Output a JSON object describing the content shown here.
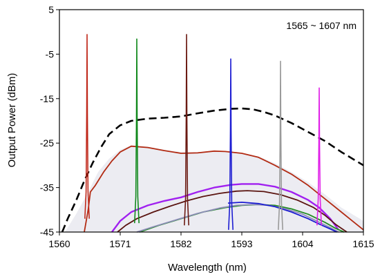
{
  "chart_data": {
    "type": "line",
    "xlabel": "Wavelength (nm)",
    "ylabel": "Output Power (dBm)",
    "xlim": [
      1560,
      1615
    ],
    "ylim": [
      -45,
      5
    ],
    "xticks": [
      1560,
      1571,
      1582,
      1593,
      1604,
      1615
    ],
    "yticks": [
      5,
      -5,
      -15,
      -25,
      -35,
      -45
    ],
    "x_tick_labels": [
      "1560",
      "1571",
      "1582",
      "1593",
      "1604",
      "1615"
    ],
    "y_tick_labels": [
      "5",
      "-5",
      "-15",
      "-25",
      "-35",
      "-45"
    ],
    "annotation": "1565 ~ 1607 nm",
    "grid": false,
    "legend": "none",
    "series": [
      {
        "style": "dashed",
        "color": "#000000",
        "x": [
          1560.5,
          1561.5,
          1563,
          1564.5,
          1566,
          1567.5,
          1569,
          1571,
          1573,
          1576,
          1579,
          1582,
          1585,
          1588,
          1591,
          1593,
          1595,
          1597,
          1599,
          1602,
          1605,
          1608,
          1611,
          1613,
          1615
        ],
        "y": [
          -45,
          -42,
          -38,
          -33.5,
          -29.5,
          -26,
          -23,
          -21,
          -20,
          -19.5,
          -19.3,
          -19,
          -18.3,
          -17.7,
          -17.3,
          -17.2,
          -17.4,
          -18,
          -18.8,
          -20.5,
          -22.5,
          -24.5,
          -27,
          -28.5,
          -30
        ]
      },
      {
        "style": "solid",
        "color": "#e8e8ec",
        "role": "ase-fill",
        "x": [
          1561,
          1563,
          1565,
          1567,
          1569,
          1571,
          1573,
          1576,
          1579,
          1582,
          1585,
          1588,
          1591,
          1593,
          1596,
          1599,
          1602,
          1605,
          1608,
          1611,
          1613,
          1615
        ],
        "y": [
          -45,
          -41,
          -36.5,
          -31.5,
          -28.5,
          -26.5,
          -25.5,
          -25.8,
          -26.5,
          -27,
          -27,
          -26.8,
          -26.9,
          -27.2,
          -28,
          -29.5,
          -31.5,
          -33.8,
          -36.5,
          -39.5,
          -41,
          -42.5
        ]
      },
      {
        "style": "solid",
        "color": "#b22a12",
        "role": "red-ase",
        "x": [
          1564.5,
          1565.2,
          1565.6,
          1566.5,
          1568,
          1569.5,
          1571,
          1573,
          1576,
          1579,
          1582,
          1585,
          1588,
          1590,
          1593,
          1596,
          1599,
          1602,
          1605,
          1608,
          1611,
          1613,
          1615
        ],
        "y": [
          -45,
          -40,
          -36,
          -34.5,
          -31.5,
          -29,
          -27,
          -25.7,
          -26,
          -26.7,
          -27.3,
          -27.2,
          -26.8,
          -26.9,
          -27.3,
          -28.2,
          -30,
          -32,
          -34.5,
          -37.5,
          -40.5,
          -42.5,
          -44.5
        ]
      },
      {
        "style": "solid",
        "color": "#a020f0",
        "role": "magenta",
        "x": [
          1569.5,
          1571,
          1573,
          1576,
          1579,
          1582,
          1585,
          1588,
          1591,
          1593,
          1596,
          1599,
          1602,
          1605,
          1607,
          1609,
          1610.5
        ],
        "y": [
          -45,
          -42.5,
          -40.5,
          -39,
          -38,
          -37.2,
          -36,
          -35,
          -34.4,
          -34.2,
          -34.2,
          -34.8,
          -36,
          -37.8,
          -39.5,
          -42,
          -44.5
        ]
      },
      {
        "style": "solid",
        "color": "#5a1410",
        "role": "dark-red",
        "x": [
          1570.5,
          1572,
          1574,
          1577,
          1580,
          1583,
          1586,
          1589,
          1592,
          1594,
          1597,
          1600,
          1603,
          1606,
          1608,
          1610,
          1612
        ],
        "y": [
          -45,
          -43.5,
          -42,
          -40.5,
          -39.2,
          -38,
          -37,
          -36.3,
          -35.8,
          -35.7,
          -35.9,
          -36.6,
          -37.8,
          -39.5,
          -41.2,
          -43.3,
          -45
        ]
      },
      {
        "style": "solid",
        "color": "#228b22",
        "role": "green",
        "x": [
          1574.5,
          1578,
          1582,
          1586,
          1590,
          1593,
          1596,
          1599,
          1602,
          1605,
          1608,
          1610,
          1611.5
        ],
        "y": [
          -45,
          -43.5,
          -42,
          -40.5,
          -39.5,
          -39,
          -38.8,
          -39,
          -39.8,
          -41,
          -42.8,
          -44.2,
          -45
        ]
      },
      {
        "style": "solid",
        "color": "#8e8eb8",
        "role": "grey-blue",
        "x": [
          1574,
          1577,
          1581,
          1585,
          1589,
          1592,
          1595,
          1598,
          1601,
          1604,
          1607,
          1609,
          1610.5
        ],
        "y": [
          -45,
          -43.8,
          -42.3,
          -40.8,
          -39.6,
          -39,
          -38.8,
          -39,
          -39.8,
          -41,
          -42.8,
          -44,
          -45
        ]
      },
      {
        "style": "solid",
        "color": "#1c1cd2",
        "role": "blue-tail",
        "x": [
          1590.5,
          1593,
          1596,
          1599,
          1602,
          1605,
          1607,
          1609,
          1610.2
        ],
        "y": [
          -38.5,
          -38.3,
          -38.6,
          -39.3,
          -40.5,
          -42,
          -43.2,
          -44.3,
          -45
        ]
      }
    ],
    "peaks": [
      {
        "color": "#c0281a",
        "x": 1565,
        "peak": -0.5,
        "base": -36
      },
      {
        "color": "#11891c",
        "x": 1574,
        "peak": -1.5,
        "base": -37
      },
      {
        "color": "#6b1a12",
        "x": 1583,
        "peak": -0.5,
        "base": -37.5
      },
      {
        "color": "#1c1cd2",
        "x": 1591,
        "peak": -6,
        "base": -38.5
      },
      {
        "color": "#9a9a9a",
        "x": 1600,
        "peak": -6.5,
        "base": -38.5
      },
      {
        "color": "#e020e8",
        "x": 1607,
        "peak": -12.5,
        "base": -37.5
      }
    ]
  }
}
